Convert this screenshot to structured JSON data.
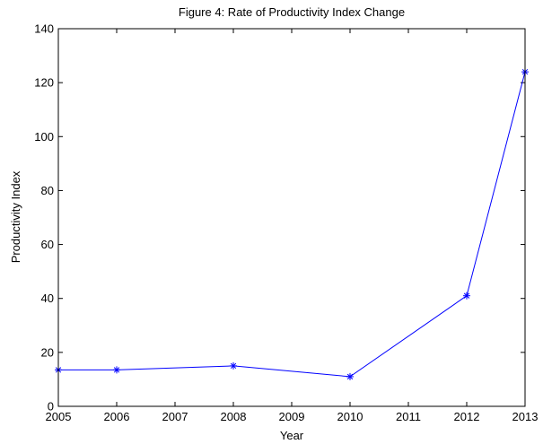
{
  "chart_data": {
    "type": "line",
    "title": "Figure 4: Rate of Productivity Index Change",
    "xlabel": "Year",
    "ylabel": "Productivity Index",
    "xlim": [
      2005,
      2013
    ],
    "ylim": [
      0,
      140
    ],
    "x_ticks": [
      "2005",
      "2006",
      "2007",
      "2008",
      "2009",
      "2010",
      "2011",
      "2012",
      "2013"
    ],
    "y_ticks": [
      "0",
      "20",
      "40",
      "60",
      "80",
      "100",
      "120",
      "140"
    ],
    "grid": false,
    "series": [
      {
        "color": "#0000ff",
        "marker": "asterisk",
        "x": [
          2005,
          2006,
          2008,
          2010,
          2012,
          2013
        ],
        "y": [
          13.5,
          13.5,
          15,
          11,
          41,
          124
        ]
      }
    ]
  }
}
